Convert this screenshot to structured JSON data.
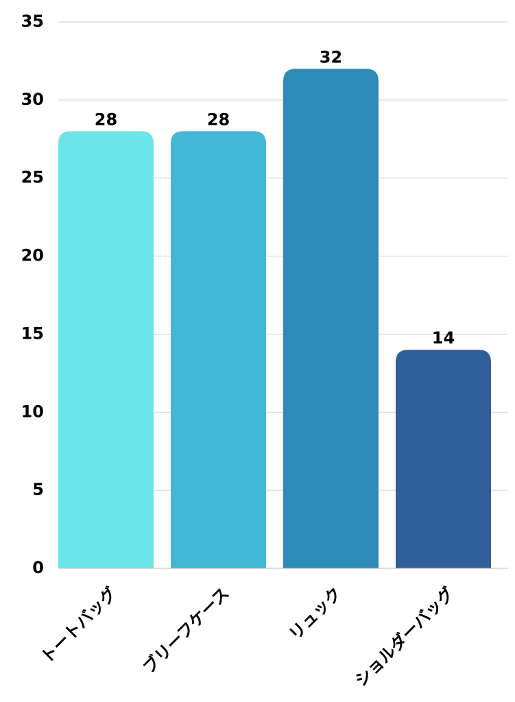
{
  "chart_data": {
    "type": "bar",
    "categories": [
      "トートバッグ",
      "ブリーフケース",
      "リュック",
      "ショルダーバッグ"
    ],
    "values": [
      28,
      28,
      32,
      14
    ],
    "colors": [
      "#6ce5e8",
      "#41b8d5",
      "#2d8bba",
      "#2f5f98"
    ],
    "ylim": [
      0,
      35
    ],
    "yticks": [
      0,
      5,
      10,
      15,
      20,
      25,
      30,
      35
    ],
    "grid": true
  }
}
